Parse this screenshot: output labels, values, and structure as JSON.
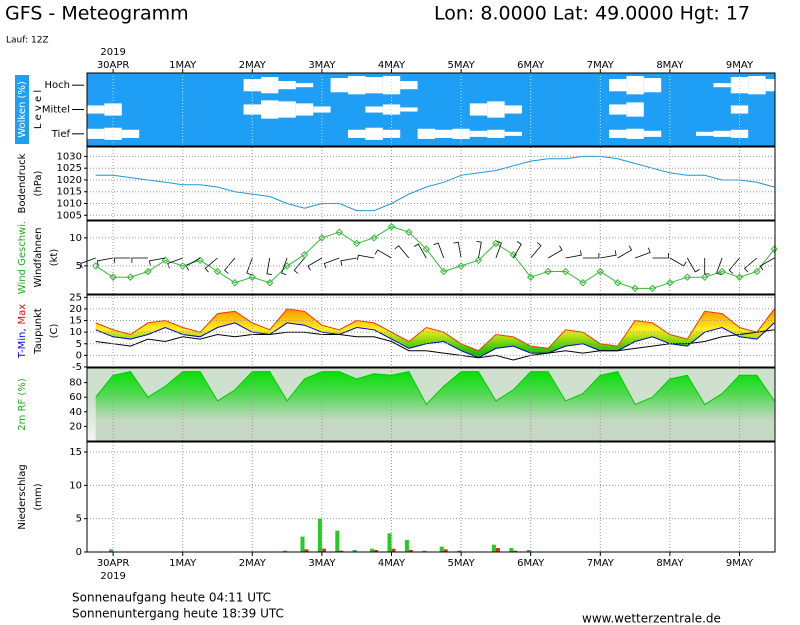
{
  "header": {
    "title": "GFS - Meteogramm",
    "location": "Lon: 8.0000 Lat: 49.0000 Hgt: 17",
    "run": "Lauf: 12Z"
  },
  "footer": {
    "sunrise": "Sonnenaufgang heute 04:11 UTC",
    "sunset": "Sonnenuntergang heute 18:39 UTC",
    "source": "www.wetterzentrale.de"
  },
  "time_axis": {
    "year_label": "2019",
    "xlim": [
      -0.375,
      9.51
    ],
    "xticks": [
      {
        "value": 0,
        "label": "30APR"
      },
      {
        "value": 1,
        "label": "1MAY"
      },
      {
        "value": 2,
        "label": "2MAY"
      },
      {
        "value": 3,
        "label": "3MAY"
      },
      {
        "value": 4,
        "label": "4MAY"
      },
      {
        "value": 5,
        "label": "5MAY"
      },
      {
        "value": 6,
        "label": "6MAY"
      },
      {
        "value": 7,
        "label": "7MAY"
      },
      {
        "value": 8,
        "label": "8MAY"
      },
      {
        "value": 9,
        "label": "9MAY"
      }
    ],
    "x": [
      -0.25,
      0,
      0.25,
      0.5,
      0.75,
      1,
      1.25,
      1.5,
      1.75,
      2,
      2.25,
      2.5,
      2.75,
      3,
      3.25,
      3.5,
      3.75,
      4,
      4.25,
      4.5,
      4.75,
      5,
      5.25,
      5.5,
      5.75,
      6,
      6.25,
      6.5,
      6.75,
      7,
      7.25,
      7.5,
      7.75,
      8,
      8.25,
      8.5,
      8.75,
      9,
      9.25,
      9.5
    ]
  },
  "chart_data": [
    {
      "type": "cloud",
      "background": "#1e9ef5",
      "ylabel": [
        [
          {
            "text": "Wolken (%)",
            "color": "#ffffff",
            "background": "#1e9ef5"
          }
        ],
        [
          {
            "text": "L e v e l",
            "color": "#000000"
          }
        ]
      ],
      "levels": [
        "Hoch",
        "Mittel",
        "Tief"
      ],
      "series": [
        {
          "color": "#ffffff",
          "values": [
            0,
            0,
            0,
            0,
            0,
            0,
            0,
            0,
            0,
            60,
            80,
            40,
            20,
            0,
            70,
            90,
            80,
            90,
            40,
            0,
            0,
            0,
            0,
            0,
            0,
            0,
            0,
            0,
            0,
            0,
            60,
            90,
            70,
            0,
            0,
            0,
            20,
            80,
            90,
            60
          ]
        },
        {
          "color": "#ffffff",
          "values": [
            40,
            60,
            0,
            0,
            0,
            0,
            0,
            0,
            0,
            50,
            90,
            80,
            60,
            30,
            0,
            0,
            30,
            50,
            20,
            0,
            0,
            0,
            60,
            80,
            40,
            0,
            0,
            0,
            0,
            0,
            50,
            70,
            0,
            0,
            0,
            0,
            0,
            40,
            0,
            0
          ]
        },
        {
          "color": "#ffffff",
          "values": [
            50,
            60,
            40,
            0,
            0,
            0,
            0,
            0,
            0,
            0,
            0,
            0,
            0,
            0,
            0,
            40,
            60,
            40,
            0,
            50,
            40,
            50,
            30,
            40,
            20,
            0,
            0,
            0,
            0,
            0,
            40,
            50,
            30,
            0,
            0,
            20,
            30,
            40,
            0,
            0
          ]
        }
      ]
    },
    {
      "type": "line",
      "ylabel": [
        [
          {
            "text": "Bodendruck",
            "color": "#000000"
          }
        ],
        [
          {
            "text": "(hPa)",
            "color": "#000000"
          }
        ]
      ],
      "ylim": [
        1003,
        1034
      ],
      "yticks": [
        1005,
        1010,
        1015,
        1020,
        1025,
        1030
      ],
      "grid": true,
      "series": [
        {
          "color": "#1a9ad6",
          "values": [
            1022,
            1022,
            1021,
            1020,
            1019,
            1018,
            1018,
            1017,
            1015,
            1014,
            1013,
            1010,
            1008,
            1010,
            1010,
            1007,
            1007,
            1010,
            1014,
            1017,
            1019,
            1022,
            1023,
            1024,
            1026,
            1028,
            1029,
            1029,
            1030,
            1030,
            1029,
            1027,
            1025,
            1023,
            1022,
            1022,
            1020,
            1020,
            1019,
            1017
          ]
        }
      ]
    },
    {
      "type": "wind",
      "ylabel": [
        [
          {
            "text": "Wind Geschwi.",
            "color": "#22aa22"
          }
        ],
        [
          {
            "text": "Windfahnen",
            "color": "#000000"
          }
        ],
        [
          {
            "text": "(kt)",
            "color": "#000000"
          }
        ]
      ],
      "ylim": [
        0,
        13
      ],
      "yticks": [
        5,
        10
      ],
      "grid": true,
      "series": [
        {
          "color": "#33bb33",
          "values": [
            5,
            3,
            3,
            4,
            6,
            5,
            6,
            4,
            2,
            3,
            2,
            5,
            7,
            10,
            11,
            9,
            10,
            12,
            11,
            8,
            4,
            5,
            6,
            9,
            7,
            3,
            4,
            4,
            2,
            4,
            2,
            1,
            1,
            2,
            3,
            3,
            4,
            3,
            4,
            8
          ]
        }
      ],
      "barb_color": "#000000",
      "directions": [
        250,
        260,
        270,
        270,
        260,
        250,
        240,
        230,
        220,
        200,
        190,
        200,
        220,
        240,
        250,
        260,
        280,
        300,
        320,
        330,
        340,
        350,
        10,
        20,
        30,
        40,
        60,
        80,
        90,
        80,
        60,
        70,
        90,
        120,
        150,
        180,
        200,
        220,
        230,
        240
      ]
    },
    {
      "type": "band",
      "ylabel": [
        [
          {
            "text": "T-Min,",
            "color": "#0000ff"
          },
          {
            "text": "Max",
            "color": "#ff0000"
          }
        ],
        [
          {
            "text": "Taupunkt",
            "color": "#000000"
          }
        ],
        [
          {
            "text": "(C)",
            "color": "#000000"
          }
        ]
      ],
      "ylim": [
        -5,
        26
      ],
      "yticks": [
        -5,
        0,
        5,
        10,
        15,
        20,
        25
      ],
      "grid": true,
      "series": [
        {
          "color": "#ff3300",
          "values": [
            14,
            11,
            9,
            14,
            15,
            12,
            10,
            18,
            19,
            14,
            11,
            20,
            19,
            13,
            11,
            15,
            14,
            10,
            6,
            12,
            10,
            5,
            2,
            9,
            8,
            4,
            3,
            11,
            10,
            5,
            4,
            15,
            14,
            9,
            7,
            19,
            18,
            12,
            10,
            20
          ]
        },
        {
          "color": "#0000cc",
          "values": [
            11,
            8,
            7,
            9,
            12,
            9,
            8,
            12,
            14,
            10,
            9,
            14,
            13,
            10,
            9,
            12,
            11,
            7,
            3,
            5,
            6,
            2,
            -1,
            3,
            4,
            1,
            1,
            4,
            5,
            2,
            2,
            6,
            8,
            5,
            4,
            10,
            12,
            8,
            7,
            14
          ]
        },
        {
          "color": "#000000",
          "values": [
            6,
            5,
            4,
            7,
            6,
            8,
            7,
            9,
            8,
            9,
            9,
            10,
            10,
            9,
            9,
            8,
            8,
            6,
            2,
            2,
            1,
            0,
            -1,
            0,
            -2,
            0,
            1,
            2,
            1,
            2,
            2,
            3,
            4,
            5,
            5,
            6,
            8,
            9,
            10,
            11
          ]
        }
      ]
    },
    {
      "type": "area",
      "ylabel": [
        [
          {
            "text": "2m RF (%)",
            "color": "#22aa22"
          }
        ]
      ],
      "ylim": [
        0,
        100
      ],
      "yticks": [
        20,
        40,
        60,
        80
      ],
      "grid": false,
      "series": [
        {
          "color": "#00cc00",
          "values": [
            60,
            90,
            95,
            60,
            75,
            95,
            95,
            55,
            70,
            95,
            95,
            55,
            85,
            95,
            95,
            85,
            92,
            90,
            95,
            50,
            75,
            95,
            95,
            55,
            70,
            95,
            95,
            55,
            65,
            90,
            95,
            50,
            60,
            85,
            90,
            50,
            65,
            90,
            90,
            55
          ]
        }
      ]
    },
    {
      "type": "bar",
      "ylabel": [
        [
          {
            "text": "Niederschlag",
            "color": "#000000"
          }
        ],
        [
          {
            "text": "(mm)",
            "color": "#000000"
          }
        ]
      ],
      "ylim": [
        0,
        16.5
      ],
      "yticks": [
        0,
        5,
        10,
        15
      ],
      "grid": true,
      "series": [
        {
          "color": "#22cc22",
          "values": [
            0,
            0.4,
            0,
            0,
            0,
            0,
            0,
            0,
            0,
            0,
            0,
            0.2,
            2.3,
            5,
            3.2,
            0.3,
            0.5,
            2.8,
            1.8,
            0.2,
            0.8,
            0.2,
            0,
            1.1,
            0.6,
            0.3,
            0,
            0,
            0,
            0,
            0,
            0,
            0,
            0,
            0,
            0,
            0,
            0,
            0,
            0
          ]
        },
        {
          "color": "#dd3300",
          "values": [
            0,
            0,
            0,
            0,
            0,
            0,
            0,
            0,
            0,
            0,
            0,
            0,
            0.4,
            0.5,
            0.2,
            0,
            0.3,
            0.5,
            0.3,
            0,
            0.4,
            0,
            0,
            0.6,
            0.2,
            0,
            0,
            0,
            0,
            0,
            0,
            0,
            0,
            0,
            0,
            0,
            0,
            0,
            0,
            0
          ]
        }
      ]
    }
  ]
}
